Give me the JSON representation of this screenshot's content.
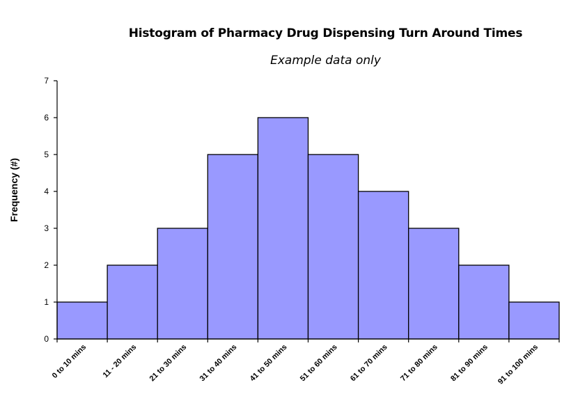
{
  "chart_data": {
    "type": "bar",
    "title": "Histogram of Pharmacy Drug Dispensing Turn Around Times",
    "subtitle": "Example data only",
    "xlabel": "",
    "ylabel": "Frequency (#)",
    "categories": [
      "0 to 10 mins",
      "11 - 20 mins",
      "21 to 30 mins",
      "31 to 40 mins",
      "41 to 50 mins",
      "51 to 60 mins",
      "61 to 70 mins",
      "71 to 80 mins",
      "81 to 90 mins",
      "91 to 100 mins"
    ],
    "values": [
      1,
      2,
      3,
      5,
      6,
      5,
      4,
      3,
      2,
      1
    ],
    "ylim": [
      0,
      7
    ],
    "yticks": [
      0,
      1,
      2,
      3,
      4,
      5,
      6,
      7
    ],
    "grid": false,
    "bar_color": "#9999ff",
    "bar_edge_color": "#000000"
  }
}
